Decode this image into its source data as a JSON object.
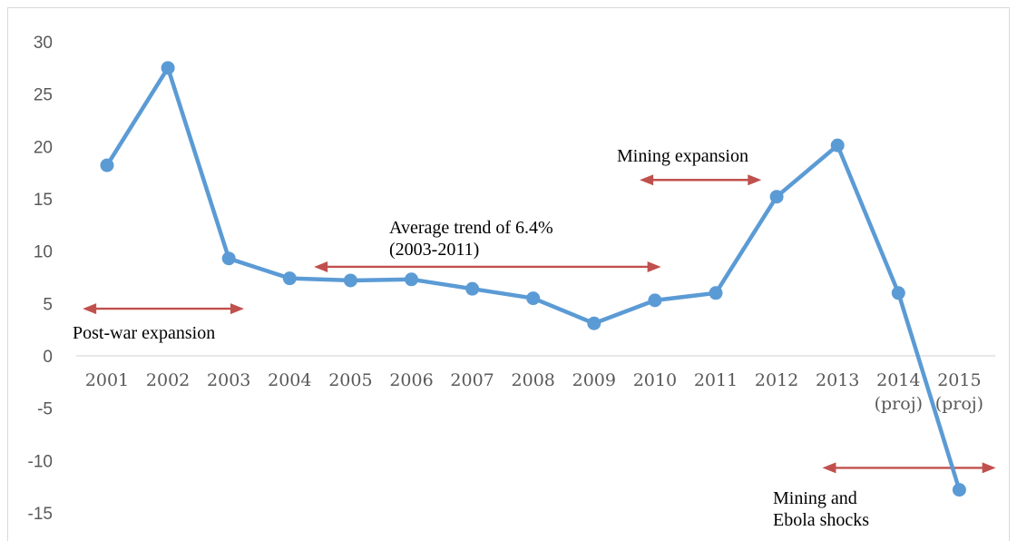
{
  "colors": {
    "series": "#5b9bd5",
    "arrow": "#c0504d",
    "axis_text": "#595959",
    "annotation_text": "#000000"
  },
  "chart_data": {
    "type": "line",
    "title": "",
    "xlabel": "",
    "ylabel": "",
    "ylim": [
      -15,
      30
    ],
    "y_ticks": [
      30,
      25,
      20,
      15,
      10,
      5,
      0,
      -5,
      -10,
      -15
    ],
    "grid": false,
    "legend": "none",
    "categories": [
      [
        "2001"
      ],
      [
        "2002"
      ],
      [
        "2003"
      ],
      [
        "2004"
      ],
      [
        "2005"
      ],
      [
        "2006"
      ],
      [
        "2007"
      ],
      [
        "2008"
      ],
      [
        "2009"
      ],
      [
        "2010"
      ],
      [
        "2011"
      ],
      [
        "2012"
      ],
      [
        "2013"
      ],
      [
        "2014",
        "(proj)"
      ],
      [
        "2015",
        "(proj)"
      ]
    ],
    "series": [
      {
        "values": [
          18.2,
          27.5,
          9.3,
          7.4,
          7.2,
          7.3,
          6.4,
          5.5,
          3.1,
          5.3,
          6.0,
          15.2,
          20.1,
          6.0,
          -12.8
        ]
      }
    ],
    "annotations": [
      {
        "lines": [
          "Post-war expansion"
        ],
        "arrow": {
          "from": 2000.6,
          "to": 2003.25,
          "y": 4.5
        }
      },
      {
        "lines": [
          "Average trend of 6.4%",
          "(2003-2011)"
        ],
        "arrow": {
          "from": 2004.4,
          "to": 2010.1,
          "y": 8.5
        }
      },
      {
        "lines": [
          "Mining expansion"
        ],
        "arrow": {
          "from": 2009.75,
          "to": 2011.75,
          "y": 16.8
        }
      },
      {
        "lines": [
          "Mining and",
          "Ebola shocks"
        ],
        "arrow": {
          "from": 2012.75,
          "to": 2015.6,
          "y": -10.7
        }
      }
    ]
  }
}
